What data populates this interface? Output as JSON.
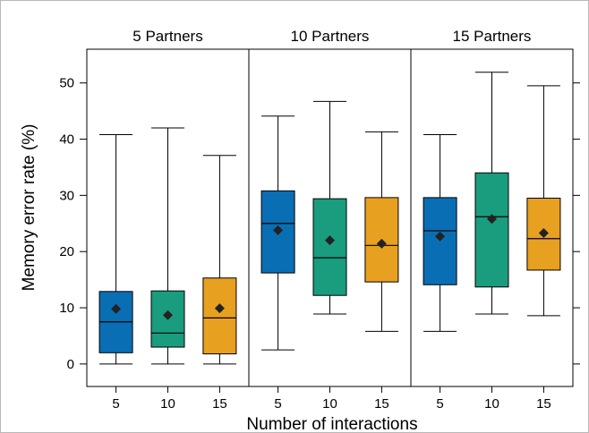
{
  "chart_data": {
    "type": "boxplot",
    "ylabel": "Memory error rate (%)",
    "xlabel": "Number of interactions",
    "ylim": [
      -4,
      56
    ],
    "yticks": [
      0,
      10,
      20,
      30,
      40,
      50
    ],
    "categories": [
      "5",
      "10",
      "15"
    ],
    "colors": {
      "5": "#0a6eb4",
      "10": "#1a9c7e",
      "15": "#e8a020"
    },
    "panels": [
      {
        "name": "5 Partners",
        "boxes": [
          {
            "x": "5",
            "min": 0,
            "q1": 2.0,
            "median": 7.5,
            "q3": 12.9,
            "max": 40.8,
            "mean": 9.8
          },
          {
            "x": "10",
            "min": 0,
            "q1": 3.0,
            "median": 5.5,
            "q3": 13.0,
            "max": 42.0,
            "mean": 8.7
          },
          {
            "x": "15",
            "min": 0,
            "q1": 1.8,
            "median": 8.2,
            "q3": 15.3,
            "max": 37.1,
            "mean": 9.9
          }
        ]
      },
      {
        "name": "10 Partners",
        "boxes": [
          {
            "x": "5",
            "min": 2.5,
            "q1": 16.2,
            "median": 25.0,
            "q3": 30.8,
            "max": 44.1,
            "mean": 23.8
          },
          {
            "x": "10",
            "min": 8.9,
            "q1": 12.2,
            "median": 18.9,
            "q3": 29.4,
            "max": 46.7,
            "mean": 22.0
          },
          {
            "x": "15",
            "min": 5.8,
            "q1": 14.6,
            "median": 21.1,
            "q3": 29.6,
            "max": 41.3,
            "mean": 21.4
          }
        ]
      },
      {
        "name": "15 Partners",
        "boxes": [
          {
            "x": "5",
            "min": 5.8,
            "q1": 14.1,
            "median": 23.7,
            "q3": 29.6,
            "max": 40.8,
            "mean": 22.7
          },
          {
            "x": "10",
            "min": 8.9,
            "q1": 13.7,
            "median": 26.2,
            "q3": 34.0,
            "max": 51.9,
            "mean": 25.8
          },
          {
            "x": "15",
            "min": 8.6,
            "q1": 16.7,
            "median": 22.3,
            "q3": 29.5,
            "max": 49.5,
            "mean": 23.3
          }
        ]
      }
    ]
  }
}
